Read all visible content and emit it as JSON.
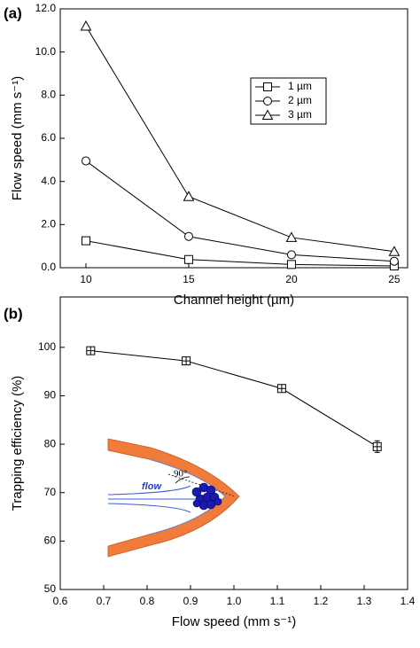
{
  "chart_data": [
    {
      "type": "line",
      "panel_label": "(a)",
      "xlabel": "Channel height (µm)",
      "ylabel": "Flow speed (mm s⁻¹)",
      "x": [
        10,
        15,
        20,
        25
      ],
      "series": [
        {
          "name": "1 µm",
          "marker": "square",
          "color": "#000000",
          "values": [
            1.25,
            0.38,
            0.15,
            0.08
          ]
        },
        {
          "name": "2 µm",
          "marker": "circle",
          "color": "#000000",
          "values": [
            4.95,
            1.45,
            0.6,
            0.3
          ]
        },
        {
          "name": "3 µm",
          "marker": "triangle",
          "color": "#000000",
          "values": [
            11.2,
            3.3,
            1.4,
            0.75
          ]
        }
      ],
      "xlim": [
        8.75,
        25.65
      ],
      "xticks": [
        10,
        15,
        20,
        25
      ],
      "ylim": [
        0,
        12
      ],
      "yticks": [
        {
          "value": 0,
          "label": "0.0"
        },
        {
          "value": 2,
          "label": "2.0"
        },
        {
          "value": 4,
          "label": "4.0"
        },
        {
          "value": 6,
          "label": "6.0"
        },
        {
          "value": 8,
          "label": "8.0"
        },
        {
          "value": 10,
          "label": "10.0"
        },
        {
          "value": 12,
          "label": "12.0"
        }
      ],
      "legend": "upper right"
    },
    {
      "type": "line",
      "panel_label": "(b)",
      "xlabel": "Flow speed (mm s⁻¹)",
      "ylabel": "Trapping efficiency (%)",
      "x": [
        0.67,
        0.89,
        1.11,
        1.33
      ],
      "values": [
        99.3,
        97.2,
        91.5,
        79.5
      ],
      "errors": [
        0.5,
        0.6,
        0.7,
        1.2
      ],
      "marker": "square-cross",
      "color": "#000000",
      "xlim": [
        0.6,
        1.4
      ],
      "xticks": [
        0.6,
        0.7,
        0.8,
        0.9,
        {
          "value": 1.0,
          "label": "1.0"
        },
        1.1,
        1.2,
        1.3,
        1.4
      ],
      "ylim": [
        50,
        110.4
      ],
      "yticks": [
        50,
        60,
        70,
        80,
        90,
        100
      ],
      "annotations": [
        "flow",
        "90°"
      ]
    }
  ]
}
